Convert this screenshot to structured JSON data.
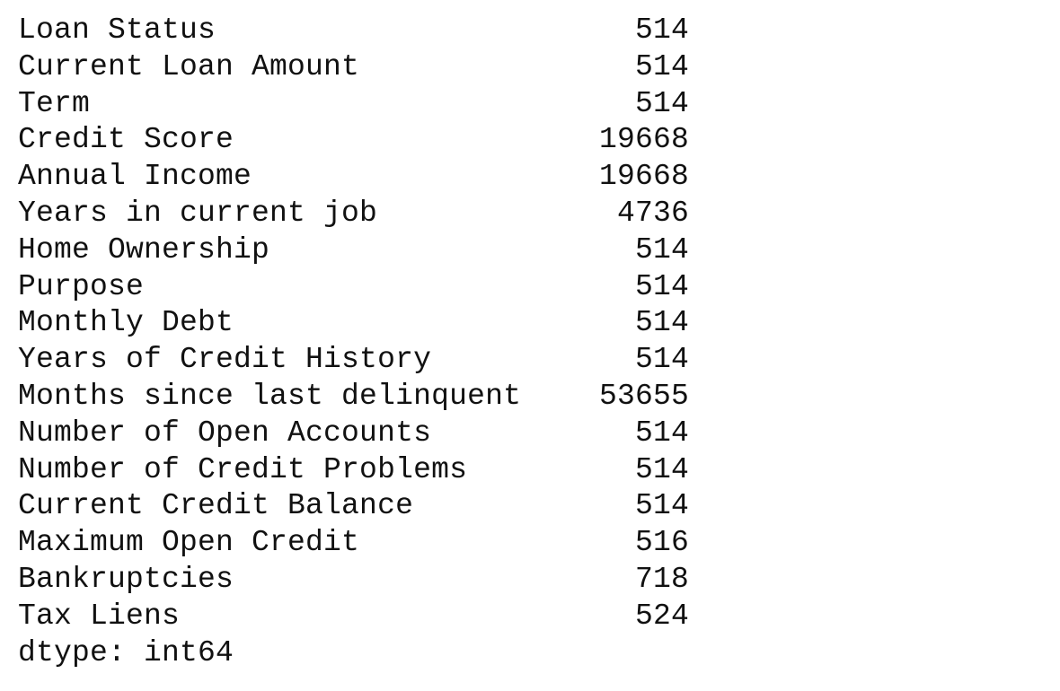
{
  "series": {
    "rows": [
      {
        "label": "Loan Status",
        "value": "514"
      },
      {
        "label": "Current Loan Amount",
        "value": "514"
      },
      {
        "label": "Term",
        "value": "514"
      },
      {
        "label": "Credit Score",
        "value": "19668"
      },
      {
        "label": "Annual Income",
        "value": "19668"
      },
      {
        "label": "Years in current job",
        "value": "4736"
      },
      {
        "label": "Home Ownership",
        "value": "514"
      },
      {
        "label": "Purpose",
        "value": "514"
      },
      {
        "label": "Monthly Debt",
        "value": "514"
      },
      {
        "label": "Years of Credit History",
        "value": "514"
      },
      {
        "label": "Months since last delinquent",
        "value": "53655"
      },
      {
        "label": "Number of Open Accounts",
        "value": "514"
      },
      {
        "label": "Number of Credit Problems",
        "value": "514"
      },
      {
        "label": "Current Credit Balance",
        "value": "514"
      },
      {
        "label": "Maximum Open Credit",
        "value": "516"
      },
      {
        "label": "Bankruptcies",
        "value": "718"
      },
      {
        "label": "Tax Liens",
        "value": "524"
      }
    ],
    "dtype": "dtype: int64"
  },
  "colors": {
    "text": "#111111",
    "background": "#ffffff"
  }
}
